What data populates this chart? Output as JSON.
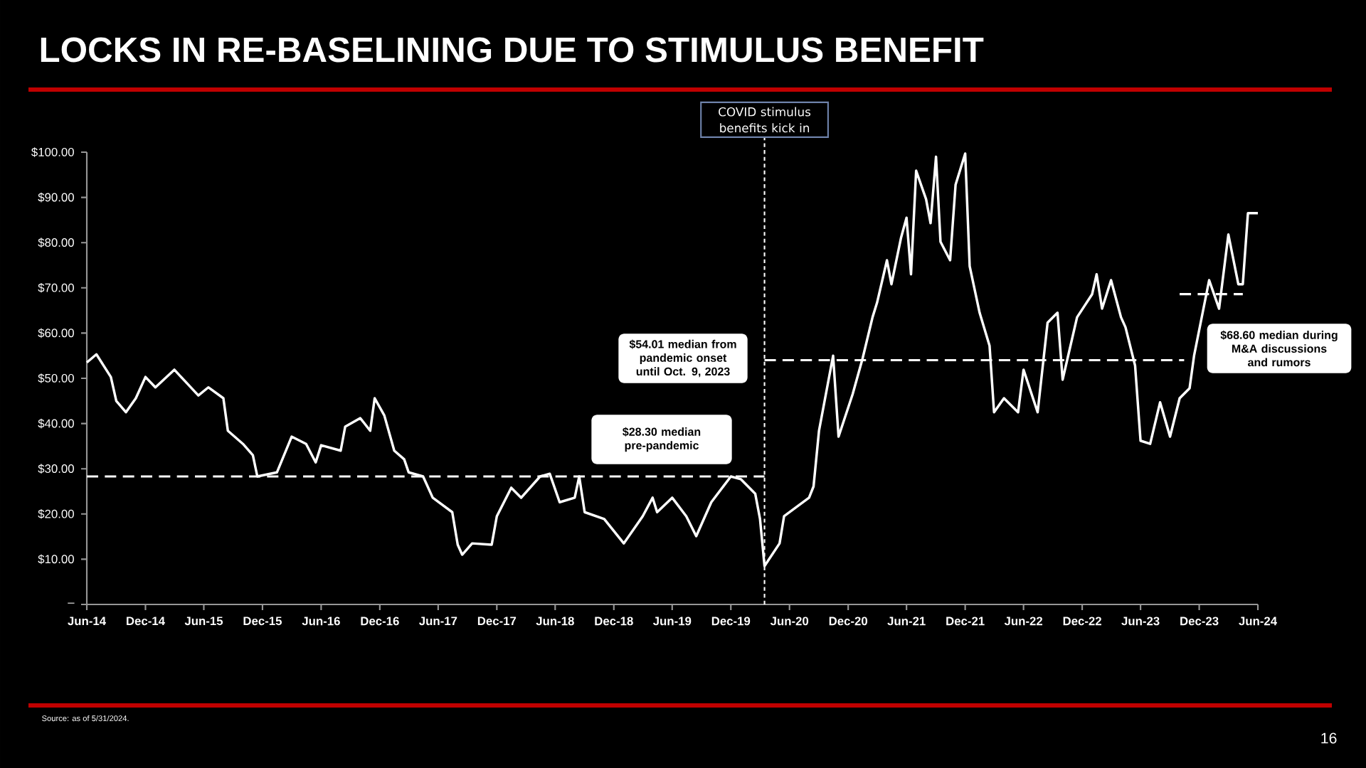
{
  "chart_data": {
    "type": "line",
    "title": "LOCKS IN RE-BASELINING DUE TO STIMULUS BENEFIT",
    "xlim": [
      "2014-06-01",
      "2024-06-01"
    ],
    "xticks": [
      {
        "value": "2014-06-01",
        "label": "Jun-14"
      },
      {
        "value": "2014-12-01",
        "label": "Dec-14"
      },
      {
        "value": "2015-06-01",
        "label": "Jun-15"
      },
      {
        "value": "2015-12-01",
        "label": "Dec-15"
      },
      {
        "value": "2016-06-01",
        "label": "Jun-16"
      },
      {
        "value": "2016-12-01",
        "label": "Dec-16"
      },
      {
        "value": "2017-06-01",
        "label": "Jun-17"
      },
      {
        "value": "2017-12-01",
        "label": "Dec-17"
      },
      {
        "value": "2018-06-01",
        "label": "Jun-18"
      },
      {
        "value": "2018-12-01",
        "label": "Dec-18"
      },
      {
        "value": "2019-06-01",
        "label": "Jun-19"
      },
      {
        "value": "2019-12-01",
        "label": "Dec-19"
      },
      {
        "value": "2020-06-01",
        "label": "Jun-20"
      },
      {
        "value": "2020-12-01",
        "label": "Dec-20"
      },
      {
        "value": "2021-06-01",
        "label": "Jun-21"
      },
      {
        "value": "2021-12-01",
        "label": "Dec-21"
      },
      {
        "value": "2022-06-01",
        "label": "Jun-22"
      },
      {
        "value": "2022-12-01",
        "label": "Dec-22"
      },
      {
        "value": "2023-06-01",
        "label": "Jun-23"
      },
      {
        "value": "2023-12-01",
        "label": "Dec-23"
      },
      {
        "value": "2024-06-01",
        "label": "Jun-24"
      }
    ],
    "ylim": [
      0,
      100
    ],
    "yticks": [
      {
        "value": 0,
        "label": "–"
      },
      {
        "value": 10,
        "label": "$10.00"
      },
      {
        "value": 20,
        "label": "$20.00"
      },
      {
        "value": 30,
        "label": "$30.00"
      },
      {
        "value": 40,
        "label": "$40.00"
      },
      {
        "value": 50,
        "label": "$50.00"
      },
      {
        "value": 60,
        "label": "$60.00"
      },
      {
        "value": 70,
        "label": "$70.00"
      },
      {
        "value": 80,
        "label": "$80.00"
      },
      {
        "value": 90,
        "label": "$90.00"
      },
      {
        "value": 100,
        "label": "$100.00"
      }
    ],
    "series": [
      {
        "color": "#ffffff",
        "x": [
          "2014-06-01",
          "2014-07-01",
          "2014-08-15",
          "2014-09-01",
          "2014-10-01",
          "2014-11-01",
          "2014-12-01",
          "2015-01-01",
          "2015-03-01",
          "2015-05-15",
          "2015-06-15",
          "2015-08-01",
          "2015-08-15",
          "2015-10-01",
          "2015-11-01",
          "2015-11-15",
          "2016-01-15",
          "2016-03-01",
          "2016-04-15",
          "2016-05-15",
          "2016-06-01",
          "2016-08-01",
          "2016-08-15",
          "2016-10-01",
          "2016-11-01",
          "2016-11-15",
          "2016-12-15",
          "2017-01-15",
          "2017-02-15",
          "2017-03-01",
          "2017-04-15",
          "2017-05-15",
          "2017-07-15",
          "2017-08-01",
          "2017-08-15",
          "2017-09-15",
          "2017-11-15",
          "2017-12-01",
          "2018-01-15",
          "2018-02-15",
          "2018-04-15",
          "2018-05-15",
          "2018-06-15",
          "2018-08-01",
          "2018-08-15",
          "2018-09-01",
          "2018-11-01",
          "2019-01-01",
          "2019-03-01",
          "2019-04-01",
          "2019-04-15",
          "2019-06-01",
          "2019-07-15",
          "2019-08-15",
          "2019-10-01",
          "2019-12-01",
          "2020-01-01",
          "2020-02-15",
          "2020-03-01",
          "2020-03-15",
          "2020-05-01",
          "2020-05-15",
          "2020-08-01",
          "2020-08-15",
          "2020-09-01",
          "2020-10-15",
          "2020-11-01",
          "2020-12-15",
          "2021-01-15",
          "2021-02-15",
          "2021-03-01",
          "2021-04-01",
          "2021-04-15",
          "2021-05-15",
          "2021-06-01",
          "2021-06-15",
          "2021-07-01",
          "2021-08-01",
          "2021-08-15",
          "2021-09-01",
          "2021-09-15",
          "2021-10-15",
          "2021-11-01",
          "2021-12-01",
          "2021-12-15",
          "2022-01-15",
          "2022-02-15",
          "2022-03-01",
          "2022-04-01",
          "2022-05-15",
          "2022-06-01",
          "2022-07-15",
          "2022-08-15",
          "2022-09-15",
          "2022-10-01",
          "2022-11-15",
          "2023-01-01",
          "2023-01-15",
          "2023-02-01",
          "2023-03-01",
          "2023-04-01",
          "2023-04-15",
          "2023-05-15",
          "2023-06-01",
          "2023-07-01",
          "2023-08-01",
          "2023-09-01",
          "2023-10-01",
          "2023-11-01",
          "2023-11-15",
          "2024-01-01",
          "2024-02-01",
          "2024-03-01",
          "2024-04-01",
          "2024-04-15",
          "2024-05-01",
          "2024-06-01"
        ],
        "values": [
          53.5,
          55.3,
          50.3,
          45,
          42.5,
          45.6,
          50.3,
          48,
          51.9,
          46.2,
          48,
          45.6,
          38.4,
          35.5,
          33,
          28.3,
          29.2,
          37.1,
          35.5,
          31.4,
          35.2,
          34,
          39.3,
          41.2,
          38.4,
          45.6,
          41.8,
          34,
          32.1,
          29.2,
          28.3,
          23.6,
          20.4,
          13.2,
          11,
          13.5,
          13.2,
          19.5,
          25.8,
          23.6,
          28.3,
          28.9,
          22.6,
          23.6,
          28.3,
          20.4,
          18.9,
          13.5,
          19.5,
          23.6,
          20.4,
          23.6,
          19.5,
          15.1,
          22.6,
          28.3,
          27.7,
          24.5,
          18.9,
          8.5,
          13.5,
          19.5,
          23.6,
          26.1,
          38.4,
          55,
          37.1,
          46.5,
          54.4,
          63.5,
          66.7,
          76.1,
          70.8,
          81.1,
          85.5,
          73,
          95.9,
          89.6,
          84.3,
          99,
          80.2,
          76.1,
          92.8,
          99.7,
          74.8,
          64.5,
          57.2,
          42.5,
          45.6,
          42.5,
          51.9,
          42.5,
          62.3,
          64.5,
          49.7,
          63.5,
          68.6,
          73,
          65.4,
          71.7,
          63.5,
          61.3,
          52.8,
          36.2,
          35.5,
          44.7,
          37.1,
          45.6,
          47.8,
          55,
          71.7,
          65.4,
          81.8,
          70.8,
          70.8,
          86.5,
          86.5
        ]
      },
      {
        "color": "#ffffff",
        "line_style": "dashed",
        "x": [
          "2014-06-01",
          "2020-03-15"
        ],
        "values": [
          28.3,
          28.3
        ]
      },
      {
        "color": "#ffffff",
        "line_style": "dashed",
        "x": [
          "2020-03-15",
          "2023-10-15"
        ],
        "values": [
          54.01,
          54.01
        ]
      },
      {
        "color": "#ffffff",
        "line_style": "dashed",
        "x": [
          "2023-10-01",
          "2024-04-15"
        ],
        "values": [
          68.6,
          68.6
        ]
      }
    ],
    "ref_lines": [
      {
        "axis": "x",
        "value": "2020-03-15",
        "label": "COVID stimulus benefits kick in",
        "color": "#ffffff",
        "line_style": "dotted"
      }
    ],
    "annotations": [
      "$28.30 median pre-pandemic",
      "$54.01 median from pandemic onset until Oct. 9, 2023",
      "$68.60 median during M&A discussions and rumors",
      "Source: as of 5/31/2024.",
      "16"
    ]
  }
}
